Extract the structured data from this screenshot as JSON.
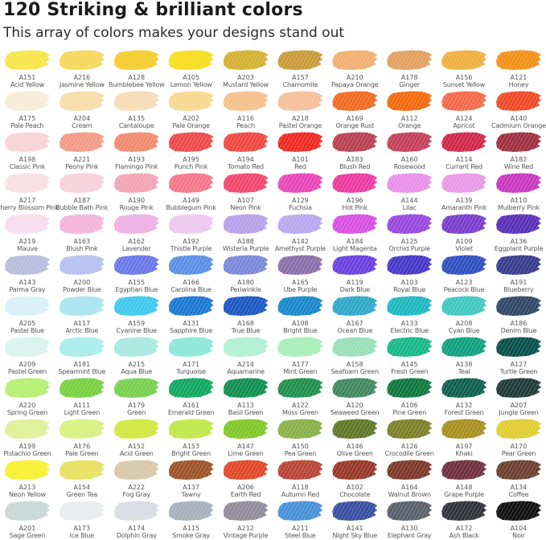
{
  "header": {
    "title": "120 Striking & brilliant colors",
    "subtitle": "This array of colors makes your designs stand out"
  },
  "swatches": [
    {
      "code": "A151",
      "name": "Acid Yellow",
      "color": "#f7e54a"
    },
    {
      "code": "A216",
      "name": "Jasmine Yellow",
      "color": "#f5d85a"
    },
    {
      "code": "A128",
      "name": "Bumblebee Yellow",
      "color": "#f5cc2e"
    },
    {
      "code": "A105",
      "name": "Lemon Yellow",
      "color": "#f7dd1e"
    },
    {
      "code": "A203",
      "name": "Mustard Yellow",
      "color": "#d4b030"
    },
    {
      "code": "A157",
      "name": "Chamomile",
      "color": "#c99a3a"
    },
    {
      "code": "A210",
      "name": "Papaya Orange",
      "color": "#eeb070"
    },
    {
      "code": "A178",
      "name": "Ginger",
      "color": "#e0a060"
    },
    {
      "code": "A156",
      "name": "Sunset Yellow",
      "color": "#f0b040"
    },
    {
      "code": "A121",
      "name": "Honey",
      "color": "#f49018"
    },
    {
      "code": "A175",
      "name": "Pale Peach",
      "color": "#f8ecd8"
    },
    {
      "code": "A204",
      "name": "Cream",
      "color": "#f7dcaa"
    },
    {
      "code": "A135",
      "name": "Cantaloupe",
      "color": "#f6dcb4"
    },
    {
      "code": "A202",
      "name": "Pale Orange",
      "color": "#f8d890"
    },
    {
      "code": "A116",
      "name": "Peach",
      "color": "#f5c08c"
    },
    {
      "code": "A218",
      "name": "Pastel Orange",
      "color": "#f5c09a"
    },
    {
      "code": "A169",
      "name": "Orange Rust",
      "color": "#f26a22"
    },
    {
      "code": "A112",
      "name": "Orange",
      "color": "#f46a0e"
    },
    {
      "code": "A124",
      "name": "Apricot",
      "color": "#f46a4a"
    },
    {
      "code": "A140",
      "name": "Cadmium Orange",
      "color": "#ee4a28"
    },
    {
      "code": "A198",
      "name": "Classic Pink",
      "color": "#f8d2d6"
    },
    {
      "code": "A221",
      "name": "Peony Pink",
      "color": "#f49a86"
    },
    {
      "code": "A193",
      "name": "Flamingo Pink",
      "color": "#f28a6e"
    },
    {
      "code": "A195",
      "name": "Punch Pink",
      "color": "#ee4a4a"
    },
    {
      "code": "A194",
      "name": "Tomato Red",
      "color": "#f04840"
    },
    {
      "code": "A101",
      "name": "Red",
      "color": "#ee2a24"
    },
    {
      "code": "A183",
      "name": "Blush Red",
      "color": "#b84050"
    },
    {
      "code": "A160",
      "name": "Rosewood",
      "color": "#c4405a"
    },
    {
      "code": "A114",
      "name": "Currant Red",
      "color": "#d0284a"
    },
    {
      "code": "A182",
      "name": "Wine Red",
      "color": "#a03040"
    },
    {
      "code": "A217",
      "name": "Cherry Blossom Pink",
      "color": "#f8e0e4"
    },
    {
      "code": "A187",
      "name": "Bubble Bath Pink",
      "color": "#f8d0dc"
    },
    {
      "code": "A190",
      "name": "Rouge Pink",
      "color": "#f4a4b4"
    },
    {
      "code": "A149",
      "name": "Bubblegum Pink",
      "color": "#f47888"
    },
    {
      "code": "A107",
      "name": "Neon Pink",
      "color": "#f04870"
    },
    {
      "code": "A129",
      "name": "Fuchsia",
      "color": "#e848b8"
    },
    {
      "code": "A196",
      "name": "Hot Pink",
      "color": "#ea3aa0"
    },
    {
      "code": "A144",
      "name": "Lilac",
      "color": "#e890e8"
    },
    {
      "code": "A139",
      "name": "Amaranth Pink",
      "color": "#e898e4"
    },
    {
      "code": "A110",
      "name": "Mulberry Pink",
      "color": "#c838c0"
    },
    {
      "code": "A219",
      "name": "Mauve",
      "color": "#f8dcf0"
    },
    {
      "code": "A163",
      "name": "Blush Pink",
      "color": "#f4b4dc"
    },
    {
      "code": "A162",
      "name": "Lavender",
      "color": "#eeb0e4"
    },
    {
      "code": "A192",
      "name": "Thistle Purple",
      "color": "#ecc8ee"
    },
    {
      "code": "A188",
      "name": "Wisteria Purple",
      "color": "#b8a0ea"
    },
    {
      "code": "A142",
      "name": "Amethyst Purple",
      "color": "#b8a8ee"
    },
    {
      "code": "A184",
      "name": "Light Magenta",
      "color": "#d850e0"
    },
    {
      "code": "A125",
      "name": "Orchid Purple",
      "color": "#9848e0"
    },
    {
      "code": "A109",
      "name": "Violet",
      "color": "#7a3ccc"
    },
    {
      "code": "A136",
      "name": "Eggplant Purple",
      "color": "#5a30b8"
    },
    {
      "code": "A143",
      "name": "Parma Gray",
      "color": "#b8bcdc"
    },
    {
      "code": "A200",
      "name": "Powder Blue",
      "color": "#b4c0f0"
    },
    {
      "code": "A155",
      "name": "Egyptian Blue",
      "color": "#6a78e8"
    },
    {
      "code": "A166",
      "name": "Carolina Blue",
      "color": "#5a90e4"
    },
    {
      "code": "A180",
      "name": "Periwinkle",
      "color": "#7a88d8"
    },
    {
      "code": "A165",
      "name": "Ube Purple",
      "color": "#8a70a8"
    },
    {
      "code": "A119",
      "name": "Dark Blue",
      "color": "#6a40e0"
    },
    {
      "code": "A103",
      "name": "Royal Blue",
      "color": "#4838c8"
    },
    {
      "code": "A123",
      "name": "Peacock Blue",
      "color": "#3050c0"
    },
    {
      "code": "A191",
      "name": "Blueberry",
      "color": "#383c8c"
    },
    {
      "code": "A205",
      "name": "Pastel Blue",
      "color": "#d8f0f8"
    },
    {
      "code": "A117",
      "name": "Arctic Blue",
      "color": "#a8e4f0"
    },
    {
      "code": "A159",
      "name": "Cyanine Blue",
      "color": "#40c8ec"
    },
    {
      "code": "A131",
      "name": "Sapphire Blue",
      "color": "#1c78d4"
    },
    {
      "code": "A168",
      "name": "True Blue",
      "color": "#1c58c0"
    },
    {
      "code": "A108",
      "name": "Bright Blue",
      "color": "#1888c8"
    },
    {
      "code": "A167",
      "name": "Ocean Blue",
      "color": "#30a8c8"
    },
    {
      "code": "A133",
      "name": "Electric Blue",
      "color": "#20b8c0"
    },
    {
      "code": "A208",
      "name": "Cyan Blue",
      "color": "#40c8c0"
    },
    {
      "code": "A186",
      "name": "Denim Blue",
      "color": "#304868"
    },
    {
      "code": "A209",
      "name": "Pastel Green",
      "color": "#d8f4ec"
    },
    {
      "code": "A181",
      "name": "Spearmint Blue",
      "color": "#a8ecec"
    },
    {
      "code": "A215",
      "name": "Aqua Blue",
      "color": "#a8e8e0"
    },
    {
      "code": "A171",
      "name": "Turquoise",
      "color": "#8ce8d8"
    },
    {
      "code": "A214",
      "name": "Aquamarine",
      "color": "#b0f0d4"
    },
    {
      "code": "A177",
      "name": "Mint Green",
      "color": "#a8eeb8"
    },
    {
      "code": "A158",
      "name": "Seafoam Green",
      "color": "#98e0b8"
    },
    {
      "code": "A145",
      "name": "Fresh Green",
      "color": "#18b888"
    },
    {
      "code": "A138",
      "name": "Teal",
      "color": "#10a080"
    },
    {
      "code": "A127",
      "name": "Turtle Green",
      "color": "#08504c"
    },
    {
      "code": "A220",
      "name": "Spring Green",
      "color": "#b4f070"
    },
    {
      "code": "A111",
      "name": "Light Green",
      "color": "#78d040"
    },
    {
      "code": "A179",
      "name": "Green",
      "color": "#78d050"
    },
    {
      "code": "A161",
      "name": "Emerald Green",
      "color": "#10a860"
    },
    {
      "code": "A113",
      "name": "Basil Green",
      "color": "#109050"
    },
    {
      "code": "A122",
      "name": "Moss Green",
      "color": "#20904c"
    },
    {
      "code": "A120",
      "name": "Seaweed Green",
      "color": "#408860"
    },
    {
      "code": "A106",
      "name": "Pine Green",
      "color": "#107840"
    },
    {
      "code": "A132",
      "name": "Forest Green",
      "color": "#106050"
    },
    {
      "code": "A207",
      "name": "Jungle Green",
      "color": "#203c38"
    },
    {
      "code": "A199",
      "name": "Pistachio Green",
      "color": "#e0f098"
    },
    {
      "code": "A176",
      "name": "Pale Green",
      "color": "#d8f080"
    },
    {
      "code": "A152",
      "name": "Acid Green",
      "color": "#d0e840"
    },
    {
      "code": "A153",
      "name": "Bright Green",
      "color": "#c0e848"
    },
    {
      "code": "A147",
      "name": "Lime Green",
      "color": "#80c828"
    },
    {
      "code": "A150",
      "name": "Pea Green",
      "color": "#88b048"
    },
    {
      "code": "A146",
      "name": "Olive Green",
      "color": "#607828"
    },
    {
      "code": "A126",
      "name": "Crocodile Green",
      "color": "#7c8028"
    },
    {
      "code": "A197",
      "name": "Khaki",
      "color": "#a89020"
    },
    {
      "code": "A170",
      "name": "Pear Green",
      "color": "#e0cc30"
    },
    {
      "code": "A213",
      "name": "Neon Yellow",
      "color": "#f8f030"
    },
    {
      "code": "A154",
      "name": "Green Tea",
      "color": "#e8e060"
    },
    {
      "code": "A222",
      "name": "Fog Gray",
      "color": "#d8c8a8"
    },
    {
      "code": "A137",
      "name": "Tawny",
      "color": "#9c5428"
    },
    {
      "code": "A206",
      "name": "Earth Red",
      "color": "#e04828"
    },
    {
      "code": "A118",
      "name": "Autumn Red",
      "color": "#b84438"
    },
    {
      "code": "A102",
      "name": "Chocolate",
      "color": "#983828"
    },
    {
      "code": "A164",
      "name": "Walnut Brown",
      "color": "#7c3828"
    },
    {
      "code": "A148",
      "name": "Grape Purple",
      "color": "#703040"
    },
    {
      "code": "A134",
      "name": "Coffee",
      "color": "#6c4030"
    },
    {
      "code": "A201",
      "name": "Sage Green",
      "color": "#c8d8d4"
    },
    {
      "code": "A173",
      "name": "Ice Blue",
      "color": "#e8ecec"
    },
    {
      "code": "A174",
      "name": "Dolphin Gray",
      "color": "#d8dce4"
    },
    {
      "code": "A115",
      "name": "Smoke Gray",
      "color": "#a8b0bc"
    },
    {
      "code": "A212",
      "name": "Vintage Purple",
      "color": "#908c9c"
    },
    {
      "code": "A211",
      "name": "Steel Blue",
      "color": "#4890d8"
    },
    {
      "code": "A141",
      "name": "Night Sky Blue",
      "color": "#3850a0"
    },
    {
      "code": "A130",
      "name": "Elephant Gray",
      "color": "#58606c"
    },
    {
      "code": "A172",
      "name": "Ash Black",
      "color": "#303438"
    },
    {
      "code": "A104",
      "name": "Noir",
      "color": "#101010"
    }
  ]
}
